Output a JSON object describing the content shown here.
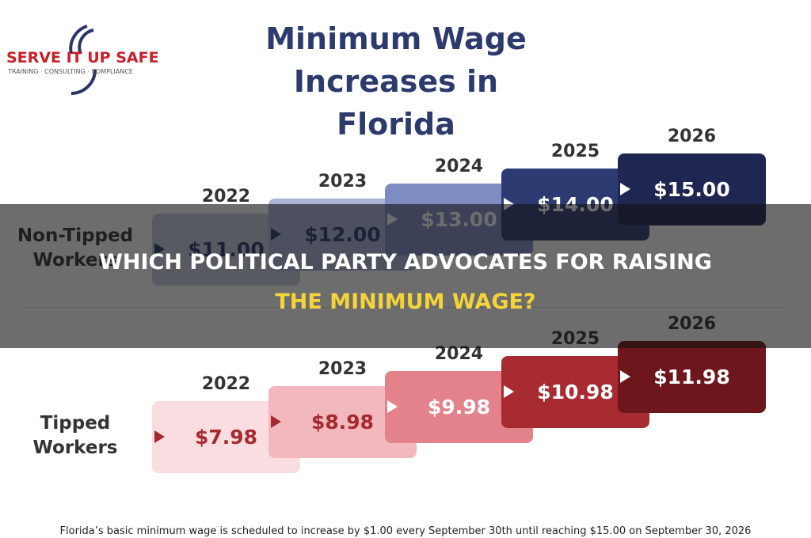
{
  "logo": {
    "name": "SERVE IT UP SAFE",
    "tagline": "TRAINING · CONSULTING · COMPLIANCE"
  },
  "header": {
    "title_line1": "Minimum Wage",
    "title_line2": "Increases in Florida"
  },
  "rows": [
    {
      "label_line1": "Non-Tipped",
      "label_line2": "Workers",
      "steps": [
        {
          "year": "2022",
          "wage": "$11.00"
        },
        {
          "year": "2023",
          "wage": "$12.00"
        },
        {
          "year": "2024",
          "wage": "$13.00"
        },
        {
          "year": "2025",
          "wage": "$14.00"
        },
        {
          "year": "2026",
          "wage": "$15.00"
        }
      ]
    },
    {
      "label_line1": "Tipped",
      "label_line2": "Workers",
      "steps": [
        {
          "year": "2022",
          "wage": "$7.98"
        },
        {
          "year": "2023",
          "wage": "$8.98"
        },
        {
          "year": "2024",
          "wage": "$9.98"
        },
        {
          "year": "2025",
          "wage": "$10.98"
        },
        {
          "year": "2026",
          "wage": "$11.98"
        }
      ]
    }
  ],
  "footnote": "Florida’s basic minimum wage is scheduled to increase by $1.00 every September 30th until reaching $15.00 on September 30, 2026",
  "headline": {
    "line1": "WHICH POLITICAL PARTY ADVOCATES FOR RAISING",
    "line2": "THE MINIMUM WAGE?"
  }
}
